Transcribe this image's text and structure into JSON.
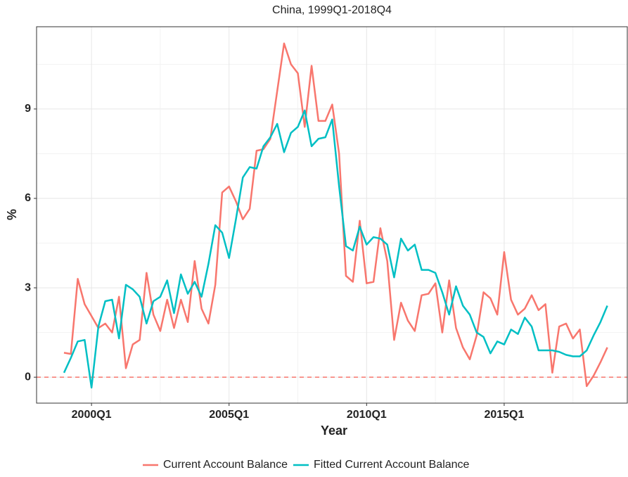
{
  "chart_data": {
    "type": "line",
    "title": "China, 1999Q1-2018Q4",
    "x_label": "Year",
    "y_label": "%",
    "categories": [
      null,
      null,
      null,
      null,
      "2000Q1",
      null,
      null,
      null,
      null,
      null,
      null,
      null,
      null,
      null,
      null,
      null,
      null,
      null,
      null,
      null,
      null,
      null,
      null,
      null,
      "2005Q1",
      null,
      null,
      null,
      null,
      null,
      null,
      null,
      null,
      null,
      null,
      null,
      null,
      null,
      null,
      null,
      null,
      null,
      null,
      null,
      "2010Q1",
      null,
      null,
      null,
      null,
      null,
      null,
      null,
      null,
      null,
      null,
      null,
      null,
      null,
      null,
      null,
      null,
      null,
      null,
      null,
      "2015Q1",
      null,
      null,
      null,
      null,
      null,
      null,
      null,
      null,
      null,
      null,
      null,
      null,
      null,
      null,
      null
    ],
    "series": [
      {
        "name": "Current Account Balance",
        "color": "#F8766D",
        "values": [
          0.82,
          0.78,
          3.3,
          2.45,
          2.05,
          1.65,
          1.8,
          1.5,
          2.7,
          0.3,
          1.1,
          1.25,
          3.5,
          2.1,
          1.55,
          2.6,
          1.65,
          2.6,
          1.85,
          3.9,
          2.3,
          1.8,
          3.1,
          6.2,
          6.4,
          5.9,
          5.3,
          5.65,
          7.6,
          7.65,
          8.0,
          9.6,
          11.2,
          10.5,
          10.2,
          8.4,
          10.45,
          8.6,
          8.6,
          9.15,
          7.5,
          3.4,
          3.2,
          5.25,
          3.15,
          3.2,
          5.0,
          3.9,
          1.25,
          2.5,
          1.9,
          1.55,
          2.75,
          2.8,
          3.15,
          1.5,
          3.25,
          1.65,
          1.0,
          0.6,
          1.4,
          2.85,
          2.65,
          2.1,
          4.2,
          2.6,
          2.1,
          2.3,
          2.75,
          2.25,
          2.45,
          0.15,
          1.7,
          1.8,
          1.3,
          1.6,
          -0.3,
          0.05,
          0.5,
          1.0
        ]
      },
      {
        "name": "Fitted Current Account Balance",
        "color": "#00BFC4",
        "values": [
          0.15,
          0.65,
          1.2,
          1.25,
          -0.35,
          1.7,
          2.55,
          2.6,
          1.3,
          3.1,
          2.95,
          2.7,
          1.8,
          2.55,
          2.7,
          3.25,
          2.15,
          3.45,
          2.8,
          3.2,
          2.7,
          3.8,
          5.1,
          4.85,
          4.0,
          5.3,
          6.7,
          7.05,
          7.0,
          7.75,
          8.05,
          8.5,
          7.55,
          8.2,
          8.4,
          8.95,
          7.75,
          8.0,
          8.05,
          8.65,
          6.4,
          4.4,
          4.25,
          5.05,
          4.45,
          4.7,
          4.65,
          4.45,
          3.35,
          4.65,
          4.25,
          4.45,
          3.6,
          3.6,
          3.5,
          2.85,
          2.1,
          3.05,
          2.4,
          2.1,
          1.5,
          1.35,
          0.8,
          1.2,
          1.1,
          1.6,
          1.45,
          2.0,
          1.7,
          0.9,
          0.9,
          0.9,
          0.85,
          0.75,
          0.7,
          0.7,
          0.9,
          1.4,
          1.85,
          2.4
        ]
      }
    ],
    "reference_line": 0,
    "reference_color": "#F8766D",
    "ylim": [
      -0.87,
      11.76
    ],
    "yticks": [
      0,
      3,
      6,
      9
    ],
    "grid": true,
    "legend": "bottom"
  }
}
